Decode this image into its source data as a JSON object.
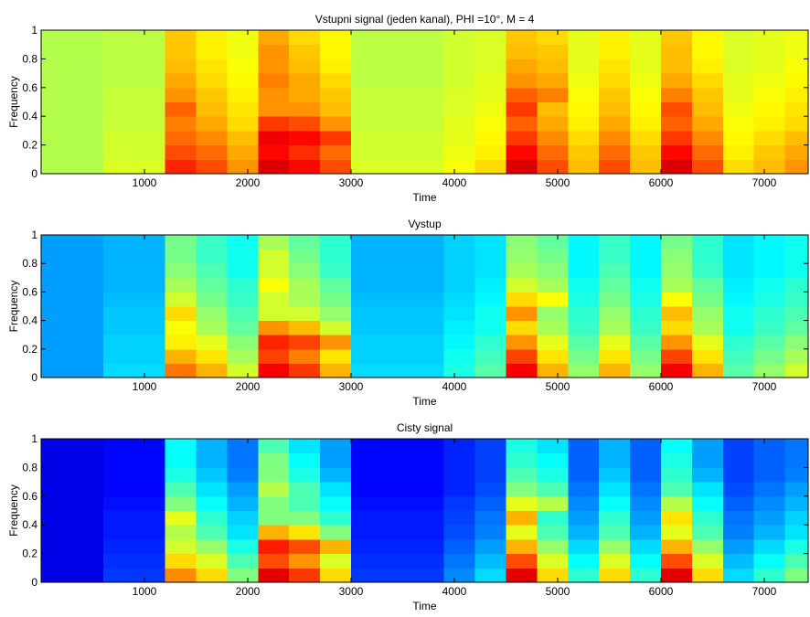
{
  "chart_data": [
    {
      "type": "heatmap",
      "title": "Vstupni signal (jeden kanal),  PHI =10°, M = 4",
      "xlabel": "Time",
      "ylabel": "Frequency",
      "colormap": "jet",
      "clim": [
        0,
        1
      ],
      "xlim": [
        0,
        7425
      ],
      "ylim": [
        0,
        1
      ],
      "xticks": [
        1000,
        2000,
        3000,
        4000,
        5000,
        6000,
        7000
      ],
      "yticks": [
        0,
        0.2,
        0.4,
        0.6,
        0.8,
        1
      ],
      "x_edges": [
        0,
        300,
        600,
        900,
        1200,
        1500,
        1800,
        2100,
        2400,
        2700,
        3000,
        3300,
        3600,
        3900,
        4200,
        4500,
        4800,
        5100,
        5400,
        5700,
        6000,
        6300,
        6600,
        6900,
        7200,
        7425
      ],
      "y_edges": [
        0,
        0.1,
        0.2,
        0.3,
        0.4,
        0.5,
        0.6,
        0.7,
        0.8,
        0.9,
        1
      ],
      "z": [
        [
          0.55,
          0.55,
          0.59,
          0.59,
          0.84,
          0.8,
          0.73,
          0.91,
          0.87,
          0.8,
          0.59,
          0.59,
          0.59,
          0.62,
          0.66,
          0.91,
          0.8,
          0.69,
          0.8,
          0.69,
          0.91,
          0.8,
          0.66,
          0.69,
          0.73
        ],
        [
          0.55,
          0.55,
          0.58,
          0.58,
          0.8,
          0.77,
          0.71,
          0.87,
          0.83,
          0.77,
          0.58,
          0.58,
          0.58,
          0.61,
          0.64,
          0.87,
          0.77,
          0.68,
          0.77,
          0.68,
          0.87,
          0.77,
          0.64,
          0.68,
          0.71
        ],
        [
          0.55,
          0.55,
          0.58,
          0.58,
          0.77,
          0.74,
          0.69,
          0.89,
          0.87,
          0.82,
          0.58,
          0.58,
          0.58,
          0.6,
          0.63,
          0.82,
          0.74,
          0.66,
          0.74,
          0.66,
          0.82,
          0.74,
          0.63,
          0.66,
          0.69
        ],
        [
          0.55,
          0.55,
          0.57,
          0.57,
          0.75,
          0.71,
          0.66,
          0.82,
          0.8,
          0.73,
          0.57,
          0.57,
          0.57,
          0.6,
          0.62,
          0.78,
          0.71,
          0.64,
          0.71,
          0.64,
          0.78,
          0.71,
          0.62,
          0.64,
          0.66
        ],
        [
          0.55,
          0.55,
          0.57,
          0.57,
          0.78,
          0.69,
          0.65,
          0.73,
          0.73,
          0.69,
          0.57,
          0.57,
          0.57,
          0.59,
          0.61,
          0.82,
          0.69,
          0.63,
          0.69,
          0.63,
          0.8,
          0.69,
          0.61,
          0.63,
          0.65
        ],
        [
          0.55,
          0.55,
          0.57,
          0.57,
          0.73,
          0.68,
          0.64,
          0.73,
          0.71,
          0.68,
          0.57,
          0.57,
          0.57,
          0.59,
          0.6,
          0.78,
          0.75,
          0.62,
          0.68,
          0.62,
          0.75,
          0.68,
          0.6,
          0.62,
          0.64
        ],
        [
          0.55,
          0.55,
          0.56,
          0.56,
          0.71,
          0.66,
          0.63,
          0.75,
          0.71,
          0.66,
          0.56,
          0.56,
          0.56,
          0.58,
          0.6,
          0.73,
          0.71,
          0.61,
          0.66,
          0.61,
          0.71,
          0.66,
          0.6,
          0.61,
          0.63
        ],
        [
          0.55,
          0.55,
          0.56,
          0.56,
          0.69,
          0.65,
          0.62,
          0.73,
          0.69,
          0.64,
          0.56,
          0.56,
          0.56,
          0.58,
          0.59,
          0.71,
          0.69,
          0.6,
          0.65,
          0.6,
          0.69,
          0.64,
          0.59,
          0.6,
          0.62
        ],
        [
          0.55,
          0.55,
          0.56,
          0.56,
          0.68,
          0.64,
          0.61,
          0.73,
          0.68,
          0.63,
          0.56,
          0.56,
          0.56,
          0.58,
          0.59,
          0.69,
          0.68,
          0.6,
          0.64,
          0.6,
          0.69,
          0.63,
          0.59,
          0.6,
          0.61
        ],
        [
          0.55,
          0.55,
          0.56,
          0.56,
          0.68,
          0.64,
          0.61,
          0.71,
          0.66,
          0.63,
          0.56,
          0.56,
          0.56,
          0.58,
          0.59,
          0.68,
          0.66,
          0.6,
          0.64,
          0.6,
          0.68,
          0.63,
          0.59,
          0.6,
          0.61
        ]
      ]
    },
    {
      "type": "heatmap",
      "title": "Vystup",
      "xlabel": "Time",
      "ylabel": "Frequency",
      "colormap": "jet",
      "clim": [
        0,
        1
      ],
      "xlim": [
        0,
        7425
      ],
      "ylim": [
        0,
        1
      ],
      "xticks": [
        1000,
        2000,
        3000,
        4000,
        5000,
        6000,
        7000
      ],
      "yticks": [
        0,
        0.2,
        0.4,
        0.6,
        0.8,
        1
      ],
      "x_edges": [
        0,
        300,
        600,
        900,
        1200,
        1500,
        1800,
        2100,
        2400,
        2700,
        3000,
        3300,
        3600,
        3900,
        4200,
        4500,
        4800,
        5100,
        5400,
        5700,
        6000,
        6300,
        6600,
        6900,
        7200,
        7425
      ],
      "y_edges": [
        0,
        0.1,
        0.2,
        0.3,
        0.4,
        0.5,
        0.6,
        0.7,
        0.8,
        0.9,
        1
      ],
      "z": [
        [
          0.28,
          0.28,
          0.34,
          0.34,
          0.76,
          0.7,
          0.58,
          0.88,
          0.82,
          0.7,
          0.34,
          0.34,
          0.34,
          0.4,
          0.46,
          0.88,
          0.7,
          0.52,
          0.7,
          0.52,
          0.88,
          0.7,
          0.46,
          0.52,
          0.58
        ],
        [
          0.28,
          0.28,
          0.33,
          0.33,
          0.7,
          0.65,
          0.54,
          0.81,
          0.75,
          0.65,
          0.33,
          0.33,
          0.33,
          0.39,
          0.44,
          0.81,
          0.65,
          0.49,
          0.65,
          0.49,
          0.81,
          0.65,
          0.44,
          0.49,
          0.54
        ],
        [
          0.28,
          0.28,
          0.33,
          0.33,
          0.64,
          0.6,
          0.51,
          0.84,
          0.81,
          0.73,
          0.33,
          0.33,
          0.33,
          0.37,
          0.42,
          0.73,
          0.6,
          0.46,
          0.6,
          0.46,
          0.73,
          0.6,
          0.42,
          0.46,
          0.51
        ],
        [
          0.28,
          0.28,
          0.32,
          0.32,
          0.62,
          0.54,
          0.47,
          0.73,
          0.69,
          0.58,
          0.32,
          0.32,
          0.32,
          0.36,
          0.39,
          0.66,
          0.54,
          0.43,
          0.54,
          0.43,
          0.66,
          0.54,
          0.39,
          0.43,
          0.47
        ],
        [
          0.28,
          0.28,
          0.32,
          0.32,
          0.66,
          0.52,
          0.45,
          0.58,
          0.58,
          0.52,
          0.32,
          0.32,
          0.32,
          0.35,
          0.39,
          0.73,
          0.52,
          0.42,
          0.52,
          0.42,
          0.69,
          0.52,
          0.39,
          0.42,
          0.45
        ],
        [
          0.28,
          0.28,
          0.31,
          0.31,
          0.58,
          0.49,
          0.43,
          0.58,
          0.54,
          0.49,
          0.31,
          0.31,
          0.31,
          0.34,
          0.37,
          0.66,
          0.62,
          0.4,
          0.49,
          0.4,
          0.62,
          0.49,
          0.37,
          0.4,
          0.43
        ],
        [
          0.28,
          0.28,
          0.3,
          0.3,
          0.54,
          0.47,
          0.42,
          0.62,
          0.54,
          0.47,
          0.3,
          0.3,
          0.3,
          0.33,
          0.36,
          0.58,
          0.54,
          0.39,
          0.47,
          0.39,
          0.54,
          0.47,
          0.36,
          0.39,
          0.42
        ],
        [
          0.28,
          0.28,
          0.3,
          0.3,
          0.51,
          0.45,
          0.39,
          0.58,
          0.51,
          0.43,
          0.3,
          0.3,
          0.3,
          0.33,
          0.35,
          0.54,
          0.51,
          0.37,
          0.45,
          0.37,
          0.52,
          0.43,
          0.35,
          0.37,
          0.39
        ],
        [
          0.28,
          0.28,
          0.3,
          0.3,
          0.49,
          0.43,
          0.39,
          0.58,
          0.49,
          0.42,
          0.3,
          0.3,
          0.3,
          0.33,
          0.35,
          0.52,
          0.49,
          0.37,
          0.43,
          0.37,
          0.51,
          0.42,
          0.35,
          0.37,
          0.39
        ],
        [
          0.28,
          0.28,
          0.3,
          0.3,
          0.49,
          0.43,
          0.39,
          0.54,
          0.47,
          0.42,
          0.3,
          0.3,
          0.3,
          0.33,
          0.35,
          0.51,
          0.47,
          0.37,
          0.43,
          0.37,
          0.49,
          0.42,
          0.35,
          0.37,
          0.39
        ]
      ]
    },
    {
      "type": "heatmap",
      "title": "Cisty signal",
      "xlabel": "Time",
      "ylabel": "Frequency",
      "colormap": "jet",
      "clim": [
        0,
        1
      ],
      "xlim": [
        0,
        7425
      ],
      "ylim": [
        0,
        1
      ],
      "xticks": [
        1000,
        2000,
        3000,
        4000,
        5000,
        6000,
        7000
      ],
      "yticks": [
        0,
        0.2,
        0.4,
        0.6,
        0.8,
        1
      ],
      "x_edges": [
        0,
        300,
        600,
        900,
        1200,
        1500,
        1800,
        2100,
        2400,
        2700,
        3000,
        3300,
        3600,
        3900,
        4200,
        4500,
        4800,
        5100,
        5400,
        5700,
        6000,
        6300,
        6600,
        6900,
        7200,
        7425
      ],
      "y_edges": [
        0,
        0.1,
        0.2,
        0.3,
        0.4,
        0.5,
        0.6,
        0.7,
        0.8,
        0.9,
        1
      ],
      "z": [
        [
          0.1,
          0.1,
          0.18,
          0.18,
          0.74,
          0.66,
          0.5,
          0.9,
          0.82,
          0.66,
          0.18,
          0.18,
          0.18,
          0.26,
          0.34,
          0.9,
          0.66,
          0.42,
          0.66,
          0.42,
          0.9,
          0.66,
          0.34,
          0.42,
          0.5
        ],
        [
          0.1,
          0.1,
          0.17,
          0.17,
          0.66,
          0.59,
          0.45,
          0.8,
          0.73,
          0.59,
          0.17,
          0.17,
          0.17,
          0.24,
          0.31,
          0.8,
          0.59,
          0.38,
          0.59,
          0.38,
          0.8,
          0.59,
          0.31,
          0.38,
          0.45
        ],
        [
          0.1,
          0.1,
          0.16,
          0.16,
          0.58,
          0.52,
          0.4,
          0.85,
          0.8,
          0.7,
          0.16,
          0.16,
          0.16,
          0.22,
          0.28,
          0.7,
          0.52,
          0.34,
          0.52,
          0.34,
          0.7,
          0.52,
          0.28,
          0.34,
          0.4
        ],
        [
          0.1,
          0.1,
          0.15,
          0.15,
          0.55,
          0.45,
          0.35,
          0.7,
          0.65,
          0.5,
          0.15,
          0.15,
          0.15,
          0.2,
          0.25,
          0.6,
          0.45,
          0.3,
          0.45,
          0.3,
          0.6,
          0.45,
          0.25,
          0.3,
          0.35
        ],
        [
          0.1,
          0.1,
          0.15,
          0.15,
          0.6,
          0.42,
          0.33,
          0.5,
          0.5,
          0.42,
          0.15,
          0.15,
          0.15,
          0.19,
          0.24,
          0.7,
          0.42,
          0.28,
          0.42,
          0.28,
          0.65,
          0.42,
          0.24,
          0.28,
          0.33
        ],
        [
          0.1,
          0.1,
          0.14,
          0.14,
          0.5,
          0.38,
          0.3,
          0.5,
          0.45,
          0.38,
          0.14,
          0.14,
          0.14,
          0.18,
          0.22,
          0.6,
          0.55,
          0.26,
          0.38,
          0.26,
          0.55,
          0.38,
          0.22,
          0.26,
          0.3
        ],
        [
          0.1,
          0.1,
          0.13,
          0.13,
          0.45,
          0.35,
          0.28,
          0.55,
          0.45,
          0.35,
          0.13,
          0.13,
          0.13,
          0.16,
          0.2,
          0.5,
          0.45,
          0.24,
          0.35,
          0.24,
          0.45,
          0.35,
          0.2,
          0.24,
          0.28
        ],
        [
          0.1,
          0.1,
          0.13,
          0.13,
          0.4,
          0.32,
          0.25,
          0.5,
          0.4,
          0.3,
          0.13,
          0.13,
          0.13,
          0.16,
          0.19,
          0.45,
          0.4,
          0.22,
          0.32,
          0.22,
          0.42,
          0.3,
          0.19,
          0.22,
          0.25
        ],
        [
          0.1,
          0.1,
          0.13,
          0.13,
          0.38,
          0.3,
          0.24,
          0.5,
          0.38,
          0.28,
          0.13,
          0.13,
          0.13,
          0.16,
          0.19,
          0.42,
          0.38,
          0.22,
          0.3,
          0.22,
          0.4,
          0.28,
          0.19,
          0.22,
          0.24
        ],
        [
          0.1,
          0.1,
          0.13,
          0.13,
          0.38,
          0.3,
          0.24,
          0.45,
          0.35,
          0.28,
          0.13,
          0.13,
          0.13,
          0.16,
          0.19,
          0.4,
          0.35,
          0.22,
          0.3,
          0.22,
          0.38,
          0.28,
          0.19,
          0.22,
          0.24
        ]
      ]
    }
  ]
}
